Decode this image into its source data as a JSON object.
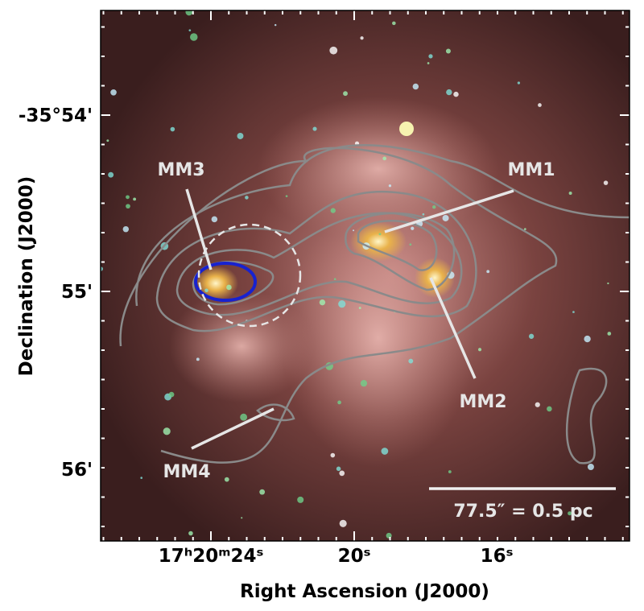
{
  "axes": {
    "x_label": "Right Ascension (J2000)",
    "y_label": "Declination (J2000)",
    "x_ticks": [
      "17ʰ20ᵐ24ˢ",
      "20ˢ",
      "16ˢ"
    ],
    "y_ticks": [
      "-35°54'",
      "55'",
      "56'"
    ]
  },
  "annotations": [
    "MM1",
    "MM2",
    "MM3",
    "MM4"
  ],
  "scale_bar": "77.5″ = 0.5 pc"
}
